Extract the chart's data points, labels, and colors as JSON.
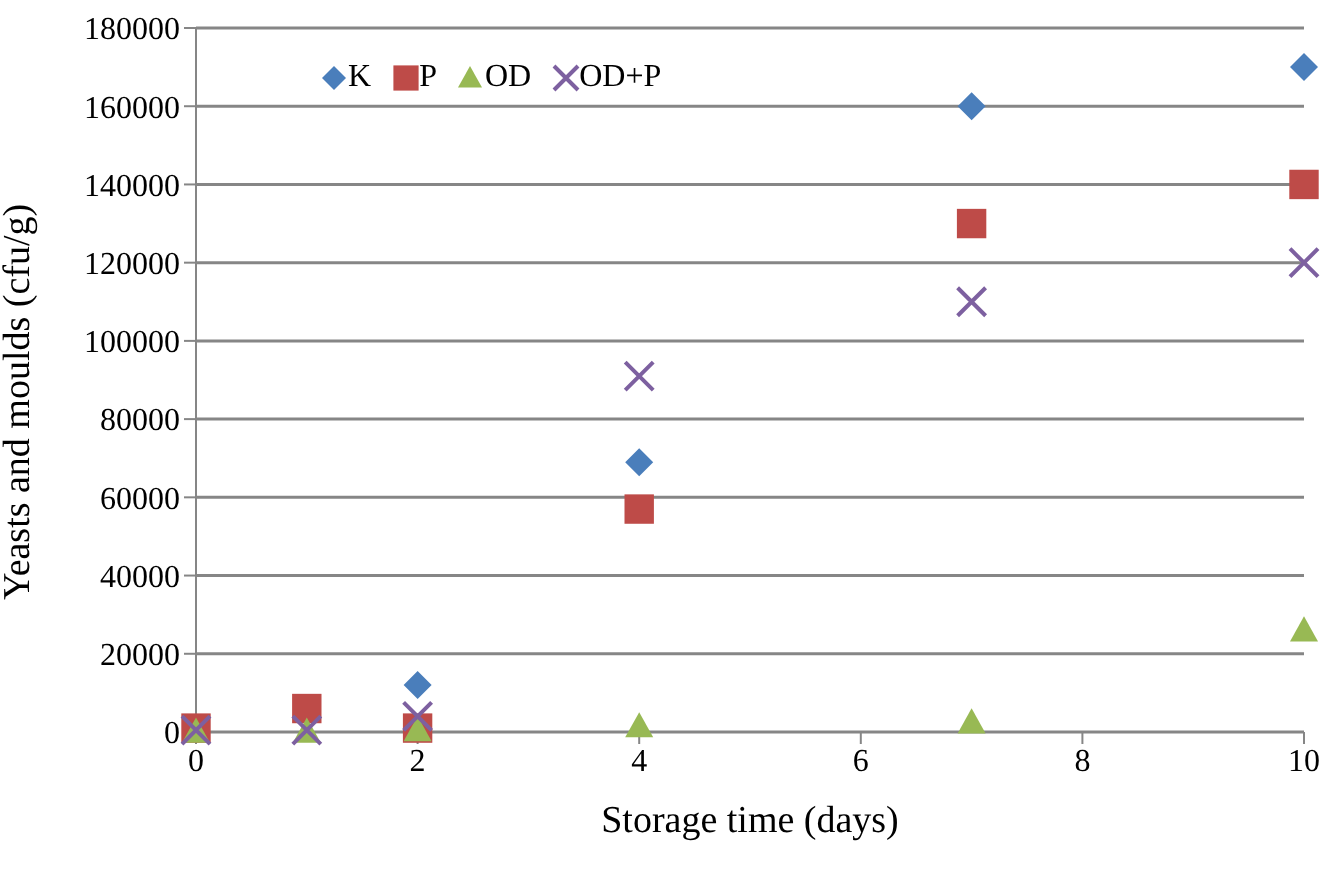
{
  "chart_data": {
    "type": "scatter",
    "xlabel": "Storage time (days)",
    "ylabel": "Yeasts and moulds (cfu/g)",
    "x": [
      0,
      1,
      2,
      4,
      7,
      10
    ],
    "xlim": [
      0,
      10
    ],
    "xticks": [
      0,
      2,
      4,
      6,
      8,
      10
    ],
    "ylim": [
      0,
      180000
    ],
    "yticks": [
      0,
      20000,
      40000,
      60000,
      80000,
      100000,
      120000,
      140000,
      160000,
      180000
    ],
    "grid": "y",
    "legend": "top left",
    "series": [
      {
        "name": "K",
        "color": "#4a7ebb",
        "marker": "diamond",
        "values": [
          null,
          null,
          12000,
          69000,
          160000,
          170000
        ]
      },
      {
        "name": "P",
        "color": "#be4b48",
        "marker": "square",
        "values": [
          1000,
          6000,
          1000,
          57000,
          130000,
          140000
        ]
      },
      {
        "name": "OD",
        "color": "#98b954",
        "marker": "triangle",
        "values": [
          100,
          100,
          500,
          1500,
          2500,
          26000
        ]
      },
      {
        "name": "OD+P",
        "color": "#7d60a0",
        "marker": "cross",
        "values": [
          500,
          500,
          4000,
          91000,
          110000,
          120000
        ]
      }
    ]
  }
}
